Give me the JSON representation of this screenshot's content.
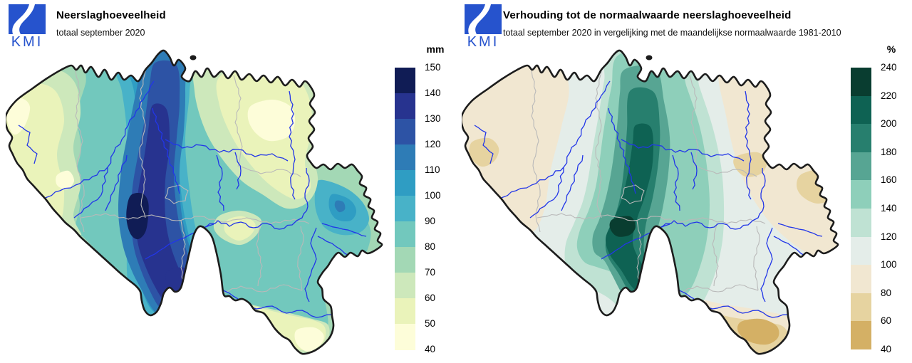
{
  "app": {
    "background": "#ffffff"
  },
  "panels": [
    {
      "logo": {
        "text": "KMI",
        "color": "#2653cd"
      },
      "title": "Neerslaghoeveelheid",
      "subtitle": "totaal september 2020",
      "map_name": "precipitation-map-belgium",
      "legend": {
        "unit": "mm",
        "tick_labels": [
          "150",
          "140",
          "130",
          "120",
          "110",
          "100",
          "90",
          "80",
          "70",
          "60",
          "50",
          "40"
        ],
        "colors_top_to_bottom": [
          "#101c55",
          "#27338f",
          "#2d53a5",
          "#2e7cb6",
          "#2f9dc3",
          "#48b2c8",
          "#72c8bd",
          "#a3d8b5",
          "#cde8bb",
          "#eaf3ba",
          "#fdfdd9"
        ]
      }
    },
    {
      "logo": {
        "text": "KMI",
        "color": "#2653cd"
      },
      "title": "Verhouding tot de normaalwaarde neerslaghoeveelheid",
      "subtitle": "totaal september 2020 in vergelijking met de maandelijkse normaalwaarde 1981-2010",
      "map_name": "ratio-map-belgium",
      "legend": {
        "unit": "%",
        "tick_labels": [
          "240",
          "220",
          "200",
          "180",
          "160",
          "140",
          "120",
          "100",
          "80",
          "60",
          "40"
        ],
        "colors_top_to_bottom": [
          "#093d30",
          "#0e6253",
          "#277f6e",
          "#57a593",
          "#8ecfba",
          "#bfe2d3",
          "#e4ede9",
          "#f1e7d1",
          "#e6d3a0",
          "#d4b065"
        ]
      }
    }
  ],
  "map_style": {
    "country_border_color": "#1c1c1c",
    "province_border_color": "#b9b9b9",
    "river_color": "#2236e8"
  }
}
